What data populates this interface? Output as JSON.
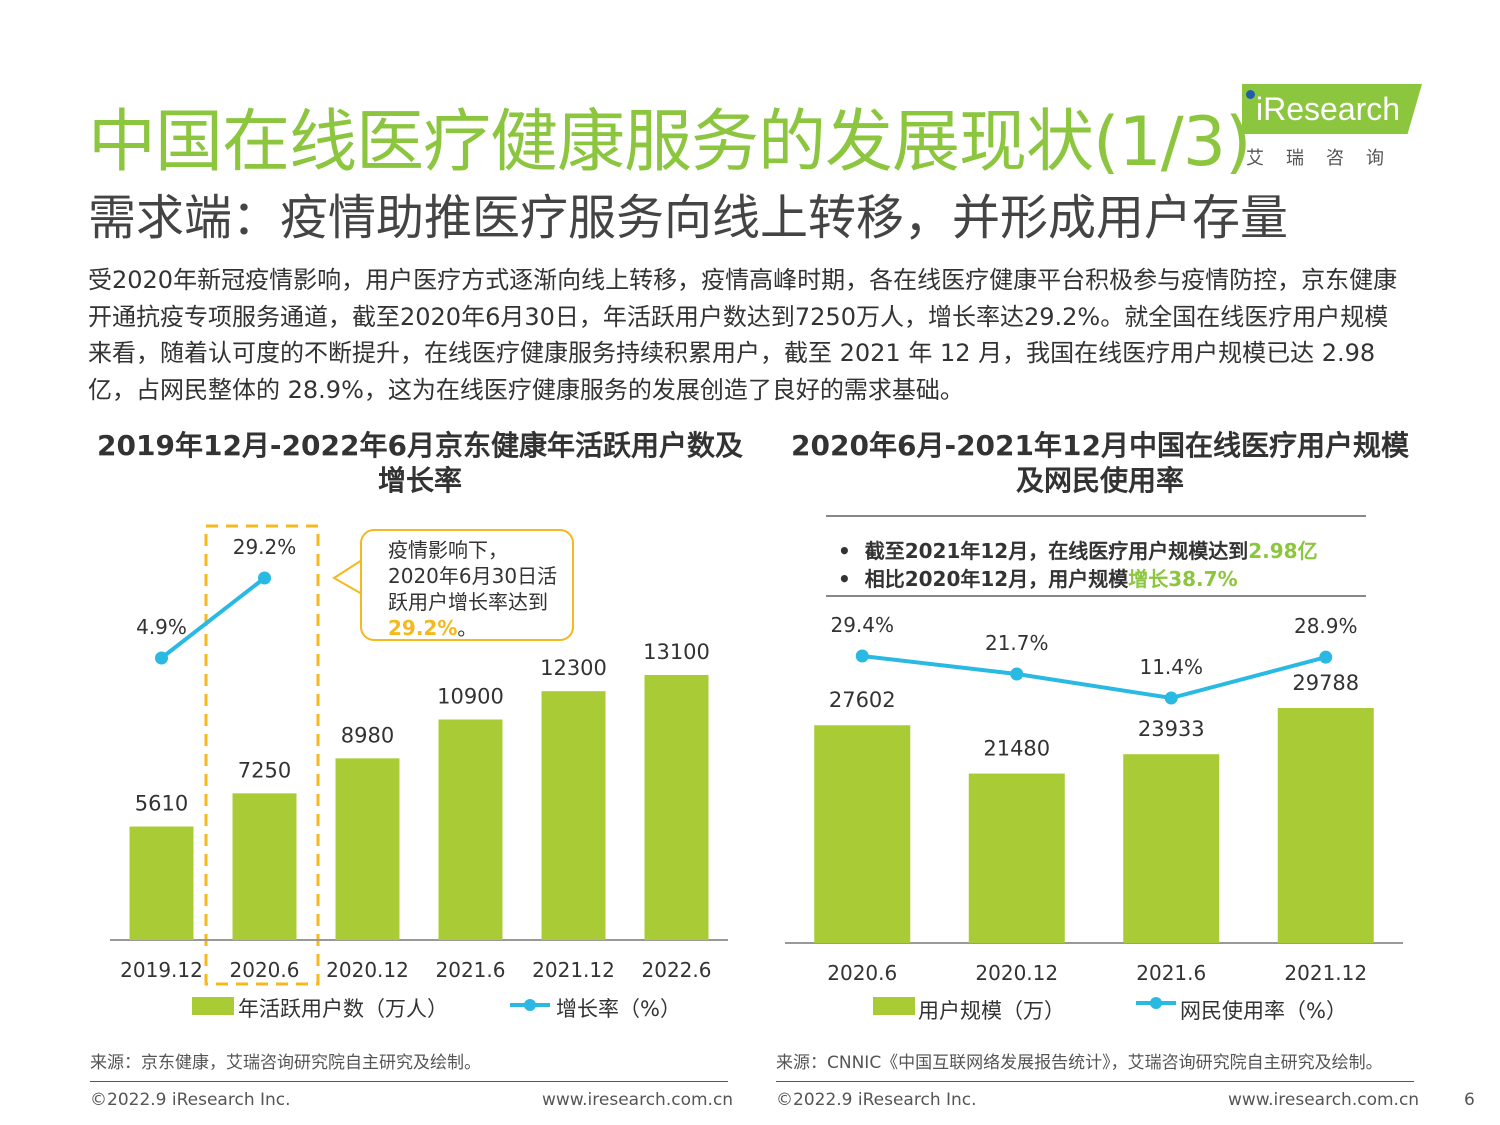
{
  "header": {
    "title": "中国在线医疗健康服务的发展现状(1/3)",
    "subtitle": "需求端：疫情助推医疗服务向线上转移，并形成用户存量",
    "logo_text": "iResearch",
    "logo_cn": "艾瑞咨询"
  },
  "intro": "受2020年新冠疫情影响，用户医疗方式逐渐向线上转移，疫情高峰时期，各在线医疗健康平台积极参与疫情防控，京东健康开通抗疫专项服务通道，截至2020年6月30日，年活跃用户数达到7250万人，增长率达29.2%。就全国在线医疗用户规模来看，随着认可度的不断提升，在线医疗健康服务持续积累用户，截至 2021 年 12 月，我国在线医疗用户规模已达 2.98 亿，占网民整体的 28.9%，这为在线医疗健康服务的发展创造了良好的需求基础。",
  "colors": {
    "accent_green": "#8cc63f",
    "bar_green": "#a9cc36",
    "line_blue": "#29b9e3",
    "highlight_orange": "#f5b81e"
  },
  "chart_data": [
    {
      "type": "bar",
      "title": "2019年12月-2022年6月京东健康年活跃用户数及增长率",
      "categories": [
        "2019.12",
        "2020.6",
        "2020.12",
        "2021.6",
        "2021.12",
        "2022.6"
      ],
      "series": [
        {
          "name": "年活跃用户数（万人）",
          "type": "bar",
          "values": [
            5610,
            7250,
            8980,
            10900,
            12300,
            13100
          ],
          "labels": [
            "5610",
            "7250",
            "8980",
            "10900",
            "12300",
            "13100"
          ]
        },
        {
          "name": "增长率（%）",
          "type": "line",
          "values": [
            4.9,
            29.2,
            null,
            null,
            null,
            null
          ],
          "labels": [
            "4.9%",
            "29.2%"
          ]
        }
      ],
      "ylim": [
        0,
        15000
      ],
      "callout": {
        "lines": [
          "疫情影响下，",
          "2020年6月30日活",
          "跃用户增长率达到"
        ],
        "highlight": "29.2%",
        "suffix": "。"
      },
      "source": "来源：京东健康，艾瑞咨询研究院自主研究及绘制。"
    },
    {
      "type": "bar",
      "title": "2020年6月-2021年12月中国在线医疗用户规模及网民使用率",
      "categories": [
        "2020.6",
        "2020.12",
        "2021.6",
        "2021.12"
      ],
      "series": [
        {
          "name": "用户规模（万）",
          "type": "bar",
          "values": [
            27602,
            21480,
            23933,
            29788
          ],
          "labels": [
            "27602",
            "21480",
            "23933",
            "29788"
          ]
        },
        {
          "name": "网民使用率（%）",
          "type": "line",
          "values": [
            29.4,
            21.7,
            11.4,
            28.9
          ],
          "labels": [
            "29.4%",
            "21.7%",
            "11.4%",
            "28.9%"
          ]
        }
      ],
      "ylim": [
        0,
        36000
      ],
      "notes": [
        {
          "text": "截至2021年12月，在线医疗用户规模达到",
          "highlight": "2.98亿"
        },
        {
          "text": "相比2020年12月，用户规模",
          "highlight": "增长38.7%"
        }
      ],
      "source": "来源：CNNIC《中国互联网络发展报告统计》，艾瑞咨询研究院自主研究及绘制。"
    }
  ],
  "footer": {
    "copyright": "©2022.9 iResearch Inc.",
    "website": "www.iresearch.com.cn",
    "page_number": "6"
  }
}
